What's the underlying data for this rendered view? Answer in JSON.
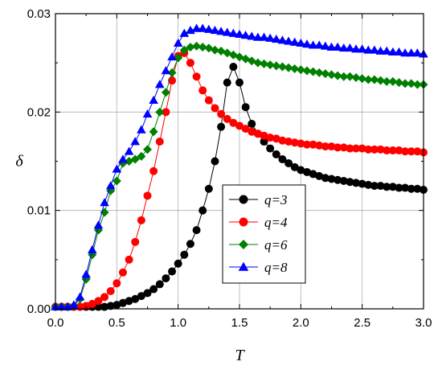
{
  "chart_data": {
    "type": "line",
    "title": "",
    "xlabel": "T",
    "ylabel": "δ",
    "xlim": [
      0.0,
      3.0
    ],
    "ylim": [
      0.0,
      0.03
    ],
    "xticks": [
      "0.0",
      "0.5",
      "1.0",
      "1.5",
      "2.0",
      "2.5",
      "3.0"
    ],
    "yticks": [
      "0.00",
      "0.01",
      "0.02",
      "0.03"
    ],
    "grid": true,
    "legend_position": "center-right",
    "series": [
      {
        "name": "q=3",
        "color": "#000000",
        "marker": "circle",
        "x": [
          0.0,
          0.05,
          0.1,
          0.15,
          0.2,
          0.25,
          0.3,
          0.35,
          0.4,
          0.45,
          0.5,
          0.55,
          0.6,
          0.65,
          0.7,
          0.75,
          0.8,
          0.85,
          0.9,
          0.95,
          1.0,
          1.05,
          1.1,
          1.15,
          1.2,
          1.25,
          1.3,
          1.35,
          1.4,
          1.45,
          1.5,
          1.55,
          1.6,
          1.65,
          1.7,
          1.75,
          1.8,
          1.85,
          1.9,
          1.95,
          2.0,
          2.05,
          2.1,
          2.15,
          2.2,
          2.25,
          2.3,
          2.35,
          2.4,
          2.45,
          2.5,
          2.55,
          2.6,
          2.65,
          2.7,
          2.75,
          2.8,
          2.85,
          2.9,
          2.95,
          3.0
        ],
        "y": [
          0.0002,
          0.0002,
          0.0002,
          0.0002,
          0.0002,
          0.0002,
          0.0002,
          0.0002,
          0.0002,
          0.0003,
          0.0004,
          0.0006,
          0.0008,
          0.001,
          0.0013,
          0.0016,
          0.002,
          0.0025,
          0.0031,
          0.0038,
          0.0046,
          0.0055,
          0.0066,
          0.008,
          0.01,
          0.0122,
          0.015,
          0.0185,
          0.023,
          0.0246,
          0.023,
          0.0205,
          0.0188,
          0.0178,
          0.017,
          0.0163,
          0.0157,
          0.0152,
          0.0148,
          0.0144,
          0.0141,
          0.0139,
          0.0137,
          0.0135,
          0.0133,
          0.0132,
          0.0131,
          0.013,
          0.0129,
          0.0128,
          0.0127,
          0.0126,
          0.0125,
          0.0125,
          0.0124,
          0.0124,
          0.0123,
          0.0123,
          0.0122,
          0.0122,
          0.0121
        ]
      },
      {
        "name": "q=4",
        "color": "#ff0000",
        "marker": "circle",
        "x": [
          0.0,
          0.05,
          0.1,
          0.15,
          0.2,
          0.25,
          0.3,
          0.35,
          0.4,
          0.45,
          0.5,
          0.55,
          0.6,
          0.65,
          0.7,
          0.75,
          0.8,
          0.85,
          0.9,
          0.95,
          1.0,
          1.05,
          1.1,
          1.15,
          1.2,
          1.25,
          1.3,
          1.35,
          1.4,
          1.45,
          1.5,
          1.55,
          1.6,
          1.65,
          1.7,
          1.75,
          1.8,
          1.85,
          1.9,
          1.95,
          2.0,
          2.05,
          2.1,
          2.15,
          2.2,
          2.25,
          2.3,
          2.35,
          2.4,
          2.45,
          2.5,
          2.55,
          2.6,
          2.65,
          2.7,
          2.75,
          2.8,
          2.85,
          2.9,
          2.95,
          3.0
        ],
        "y": [
          0.0002,
          0.0002,
          0.0002,
          0.0002,
          0.0002,
          0.0003,
          0.0005,
          0.0008,
          0.0012,
          0.0018,
          0.0026,
          0.0037,
          0.005,
          0.0068,
          0.009,
          0.0115,
          0.014,
          0.017,
          0.02,
          0.0232,
          0.0257,
          0.026,
          0.025,
          0.0236,
          0.0222,
          0.0212,
          0.0204,
          0.0198,
          0.0193,
          0.0189,
          0.0186,
          0.0183,
          0.018,
          0.0178,
          0.0176,
          0.0174,
          0.0173,
          0.0171,
          0.017,
          0.0169,
          0.0168,
          0.0167,
          0.0167,
          0.0166,
          0.0165,
          0.0165,
          0.0164,
          0.0164,
          0.0163,
          0.0163,
          0.0163,
          0.0162,
          0.0162,
          0.0162,
          0.0161,
          0.0161,
          0.0161,
          0.016,
          0.016,
          0.016,
          0.0159
        ]
      },
      {
        "name": "q=6",
        "color": "#008000",
        "marker": "diamond",
        "x": [
          0.0,
          0.05,
          0.1,
          0.15,
          0.2,
          0.25,
          0.3,
          0.35,
          0.4,
          0.45,
          0.5,
          0.55,
          0.6,
          0.65,
          0.7,
          0.75,
          0.8,
          0.85,
          0.9,
          0.95,
          1.0,
          1.05,
          1.1,
          1.15,
          1.2,
          1.25,
          1.3,
          1.35,
          1.4,
          1.45,
          1.5,
          1.55,
          1.6,
          1.65,
          1.7,
          1.75,
          1.8,
          1.85,
          1.9,
          1.95,
          2.0,
          2.05,
          2.1,
          2.15,
          2.2,
          2.25,
          2.3,
          2.35,
          2.4,
          2.45,
          2.5,
          2.55,
          2.6,
          2.65,
          2.7,
          2.75,
          2.8,
          2.85,
          2.9,
          2.95,
          3.0
        ],
        "y": [
          0.0002,
          0.0002,
          0.0002,
          0.0003,
          0.001,
          0.003,
          0.0055,
          0.008,
          0.0098,
          0.012,
          0.013,
          0.0148,
          0.015,
          0.0152,
          0.0155,
          0.0162,
          0.018,
          0.02,
          0.022,
          0.024,
          0.0255,
          0.0263,
          0.0266,
          0.0267,
          0.0266,
          0.0265,
          0.0263,
          0.0262,
          0.026,
          0.0258,
          0.0256,
          0.0254,
          0.0252,
          0.025,
          0.0249,
          0.0248,
          0.0247,
          0.0246,
          0.0245,
          0.0244,
          0.0243,
          0.0242,
          0.0241,
          0.024,
          0.0239,
          0.0238,
          0.0237,
          0.0236,
          0.0236,
          0.0235,
          0.0234,
          0.0233,
          0.0233,
          0.0232,
          0.0231,
          0.0231,
          0.023,
          0.0229,
          0.0229,
          0.0228,
          0.0228
        ]
      },
      {
        "name": "q=8",
        "color": "#0000ff",
        "marker": "triangle",
        "x": [
          0.0,
          0.05,
          0.1,
          0.15,
          0.2,
          0.25,
          0.3,
          0.35,
          0.4,
          0.45,
          0.5,
          0.55,
          0.6,
          0.65,
          0.7,
          0.75,
          0.8,
          0.85,
          0.9,
          0.95,
          1.0,
          1.05,
          1.1,
          1.15,
          1.2,
          1.25,
          1.3,
          1.35,
          1.4,
          1.45,
          1.5,
          1.55,
          1.6,
          1.65,
          1.7,
          1.75,
          1.8,
          1.85,
          1.9,
          1.95,
          2.0,
          2.05,
          2.1,
          2.15,
          2.2,
          2.25,
          2.3,
          2.35,
          2.4,
          2.45,
          2.5,
          2.55,
          2.6,
          2.65,
          2.7,
          2.75,
          2.8,
          2.85,
          2.9,
          2.95,
          3.0
        ],
        "y": [
          0.0002,
          0.0002,
          0.0002,
          0.0004,
          0.0012,
          0.0035,
          0.006,
          0.0085,
          0.0108,
          0.0125,
          0.0142,
          0.0152,
          0.016,
          0.017,
          0.0182,
          0.0198,
          0.0212,
          0.0228,
          0.0242,
          0.0256,
          0.027,
          0.028,
          0.0283,
          0.0285,
          0.0285,
          0.0284,
          0.0283,
          0.0282,
          0.0281,
          0.028,
          0.0279,
          0.0278,
          0.0277,
          0.0276,
          0.0276,
          0.0275,
          0.0274,
          0.0273,
          0.0272,
          0.0271,
          0.027,
          0.0269,
          0.0268,
          0.0268,
          0.0267,
          0.0266,
          0.0266,
          0.0265,
          0.0265,
          0.0264,
          0.0264,
          0.0263,
          0.0263,
          0.0262,
          0.0262,
          0.0261,
          0.0261,
          0.026,
          0.026,
          0.026,
          0.0259
        ]
      }
    ]
  }
}
